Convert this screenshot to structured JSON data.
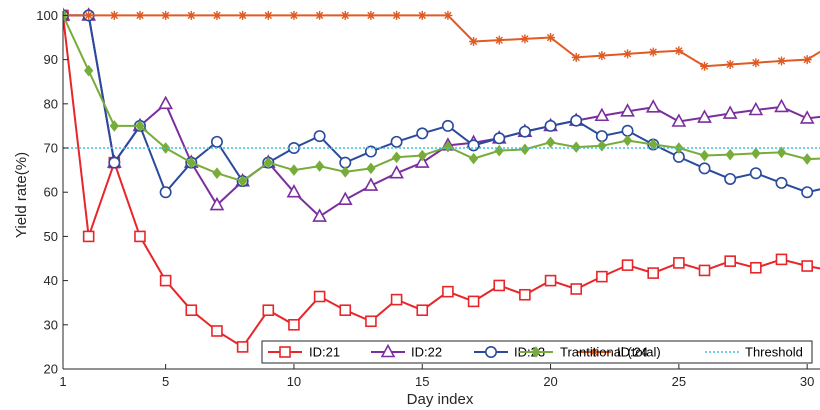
{
  "chart_data": {
    "type": "line",
    "xlabel": "Day index",
    "ylabel": "Yield rate(%)",
    "xlim": [
      1,
      30.5
    ],
    "ylim": [
      20,
      101
    ],
    "x_ticks": [
      1,
      5,
      10,
      15,
      20,
      25,
      30
    ],
    "y_ticks": [
      20,
      30,
      40,
      50,
      60,
      70,
      80,
      90,
      100
    ],
    "grid": false,
    "legend_position": "bottom-right",
    "x": [
      1,
      2,
      3,
      4,
      5,
      6,
      7,
      8,
      9,
      10,
      11,
      12,
      13,
      14,
      15,
      16,
      17,
      18,
      19,
      20,
      21,
      22,
      23,
      24,
      25,
      26,
      27,
      28,
      29,
      30,
      31
    ],
    "series": [
      {
        "name": "ID:21",
        "color": "#e8262a",
        "marker": "square",
        "values": [
          100,
          50,
          66.7,
          50,
          40,
          33.3,
          28.6,
          25,
          33.3,
          30,
          36.4,
          33.3,
          30.8,
          35.7,
          33.3,
          37.5,
          35.3,
          38.9,
          36.8,
          40,
          38.1,
          40.9,
          43.5,
          41.7,
          44,
          42.3,
          44.4,
          42.9,
          44.8,
          43.3,
          42.2
        ]
      },
      {
        "name": "ID:22",
        "color": "#7b2f9e",
        "marker": "triangle",
        "values": [
          100,
          100,
          66.7,
          75,
          80,
          66.7,
          57.1,
          62.5,
          66.7,
          60,
          54.5,
          58.3,
          61.5,
          64.3,
          66.7,
          70.6,
          71.2,
          72.2,
          73.7,
          75,
          76.2,
          77.3,
          78.3,
          79.2,
          76,
          76.9,
          77.8,
          78.6,
          79.3,
          76.7,
          77.4
        ]
      },
      {
        "name": "ID:23",
        "color": "#2a4a9c",
        "marker": "circle",
        "values": [
          100,
          100,
          66.7,
          75,
          60,
          66.7,
          71.4,
          62.5,
          66.7,
          70,
          72.7,
          66.7,
          69.2,
          71.4,
          73.3,
          75,
          70.6,
          72.2,
          73.7,
          75,
          76.2,
          72.7,
          73.9,
          70.8,
          68,
          65.4,
          63,
          64.3,
          62.1,
          60,
          61.3
        ]
      },
      {
        "name": "ID:24",
        "color": "#e05a22",
        "marker": "asterisk",
        "values": [
          100,
          100,
          100,
          100,
          100,
          100,
          100,
          100,
          100,
          100,
          100,
          100,
          100,
          100,
          100,
          100,
          94.1,
          94.4,
          94.7,
          95,
          90.5,
          90.9,
          91.3,
          91.7,
          92,
          88.5,
          88.9,
          89.3,
          89.7,
          90,
          93.5
        ]
      },
      {
        "name": "Trantitional (total)",
        "color": "#77ac3a",
        "marker": "diamond",
        "values": [
          100,
          87.5,
          75,
          75,
          70,
          66.7,
          64.3,
          62.5,
          66.7,
          65,
          65.9,
          64.6,
          65.4,
          67.9,
          68.3,
          70.3,
          67.6,
          69.4,
          69.7,
          71.3,
          70.2,
          70.5,
          71.7,
          70.8,
          70,
          68.3,
          68.5,
          68.8,
          69,
          67.5,
          67.7
        ]
      },
      {
        "name": "Threshold",
        "color": "#3ec2e0",
        "marker": "none",
        "dashed": true,
        "values": [
          70,
          70,
          70,
          70,
          70,
          70,
          70,
          70,
          70,
          70,
          70,
          70,
          70,
          70,
          70,
          70,
          70,
          70,
          70,
          70,
          70,
          70,
          70,
          70,
          70,
          70,
          70,
          70,
          70,
          70,
          70
        ]
      }
    ]
  }
}
